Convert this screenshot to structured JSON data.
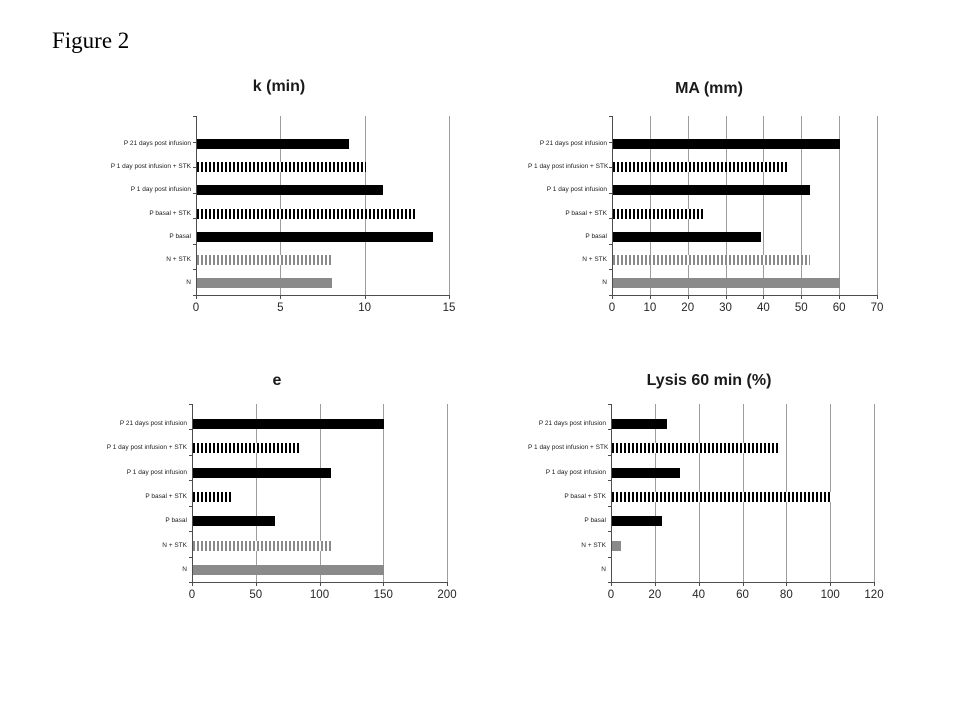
{
  "figure_label": "Figure 2",
  "colors": {
    "background": "#ffffff",
    "bar_black": "#000000",
    "bar_gray": "#8a8a8a",
    "gridline": "#9d9d9d",
    "axis": "#4d4d4d",
    "text": "#1a1a1a"
  },
  "chart_data": [
    {
      "type": "bar",
      "orientation": "horizontal",
      "title": "k (min)",
      "categories": [
        "P 21 days post infusion",
        "P 1 day post infusion + STK",
        "P 1 day post infusion",
        "P basal + STK",
        "P basal",
        "N + STK",
        "N"
      ],
      "values": [
        9,
        10,
        11,
        13,
        14,
        8,
        8
      ],
      "bar_styles": [
        "black-solid",
        "black-striped",
        "black-solid",
        "black-striped",
        "black-solid",
        "gray-striped",
        "gray-solid"
      ],
      "xlim": [
        0,
        15
      ],
      "xticks": [
        0,
        5,
        10,
        15
      ],
      "grid": true,
      "legend": false
    },
    {
      "type": "bar",
      "orientation": "horizontal",
      "title": "MA (mm)",
      "categories": [
        "P 21 days post infusion",
        "P 1 day post infusion + STK",
        "P 1 day post infusion",
        "P basal + STK",
        "P basal",
        "N + STK",
        "N"
      ],
      "values": [
        60,
        46,
        52,
        24,
        39,
        52,
        60
      ],
      "bar_styles": [
        "black-solid",
        "black-striped",
        "black-solid",
        "black-striped",
        "black-solid",
        "gray-striped",
        "gray-solid"
      ],
      "xlim": [
        0,
        70
      ],
      "xticks": [
        0,
        10,
        20,
        30,
        40,
        50,
        60,
        70
      ],
      "grid": true,
      "legend": false
    },
    {
      "type": "bar",
      "orientation": "horizontal",
      "title": "e",
      "categories": [
        "P 21 days post infusion",
        "P 1 day post infusion + STK",
        "P 1 day post infusion",
        "P basal + STK",
        "P basal",
        "N + STK",
        "N"
      ],
      "values": [
        150,
        83,
        108,
        30,
        64,
        108,
        150
      ],
      "bar_styles": [
        "black-solid",
        "black-striped",
        "black-solid",
        "black-striped",
        "black-solid",
        "gray-striped",
        "gray-solid"
      ],
      "xlim": [
        0,
        200
      ],
      "xticks": [
        0,
        50,
        100,
        150,
        200
      ],
      "grid": true,
      "legend": false
    },
    {
      "type": "bar",
      "orientation": "horizontal",
      "title": "Lysis 60 min (%)",
      "categories": [
        "P 21 days post infusion",
        "P 1 day post infusion + STK",
        "P 1 day post infusion",
        "P basal + STK",
        "P basal",
        "N + STK",
        "N"
      ],
      "values": [
        25,
        76,
        31,
        100,
        23,
        4,
        0
      ],
      "bar_styles": [
        "black-solid",
        "black-striped",
        "black-solid",
        "black-striped",
        "black-solid",
        "gray-solid",
        "gray-solid"
      ],
      "xlim": [
        0,
        120
      ],
      "xticks": [
        0,
        20,
        40,
        60,
        80,
        100,
        120
      ],
      "grid": true,
      "legend": false
    }
  ]
}
